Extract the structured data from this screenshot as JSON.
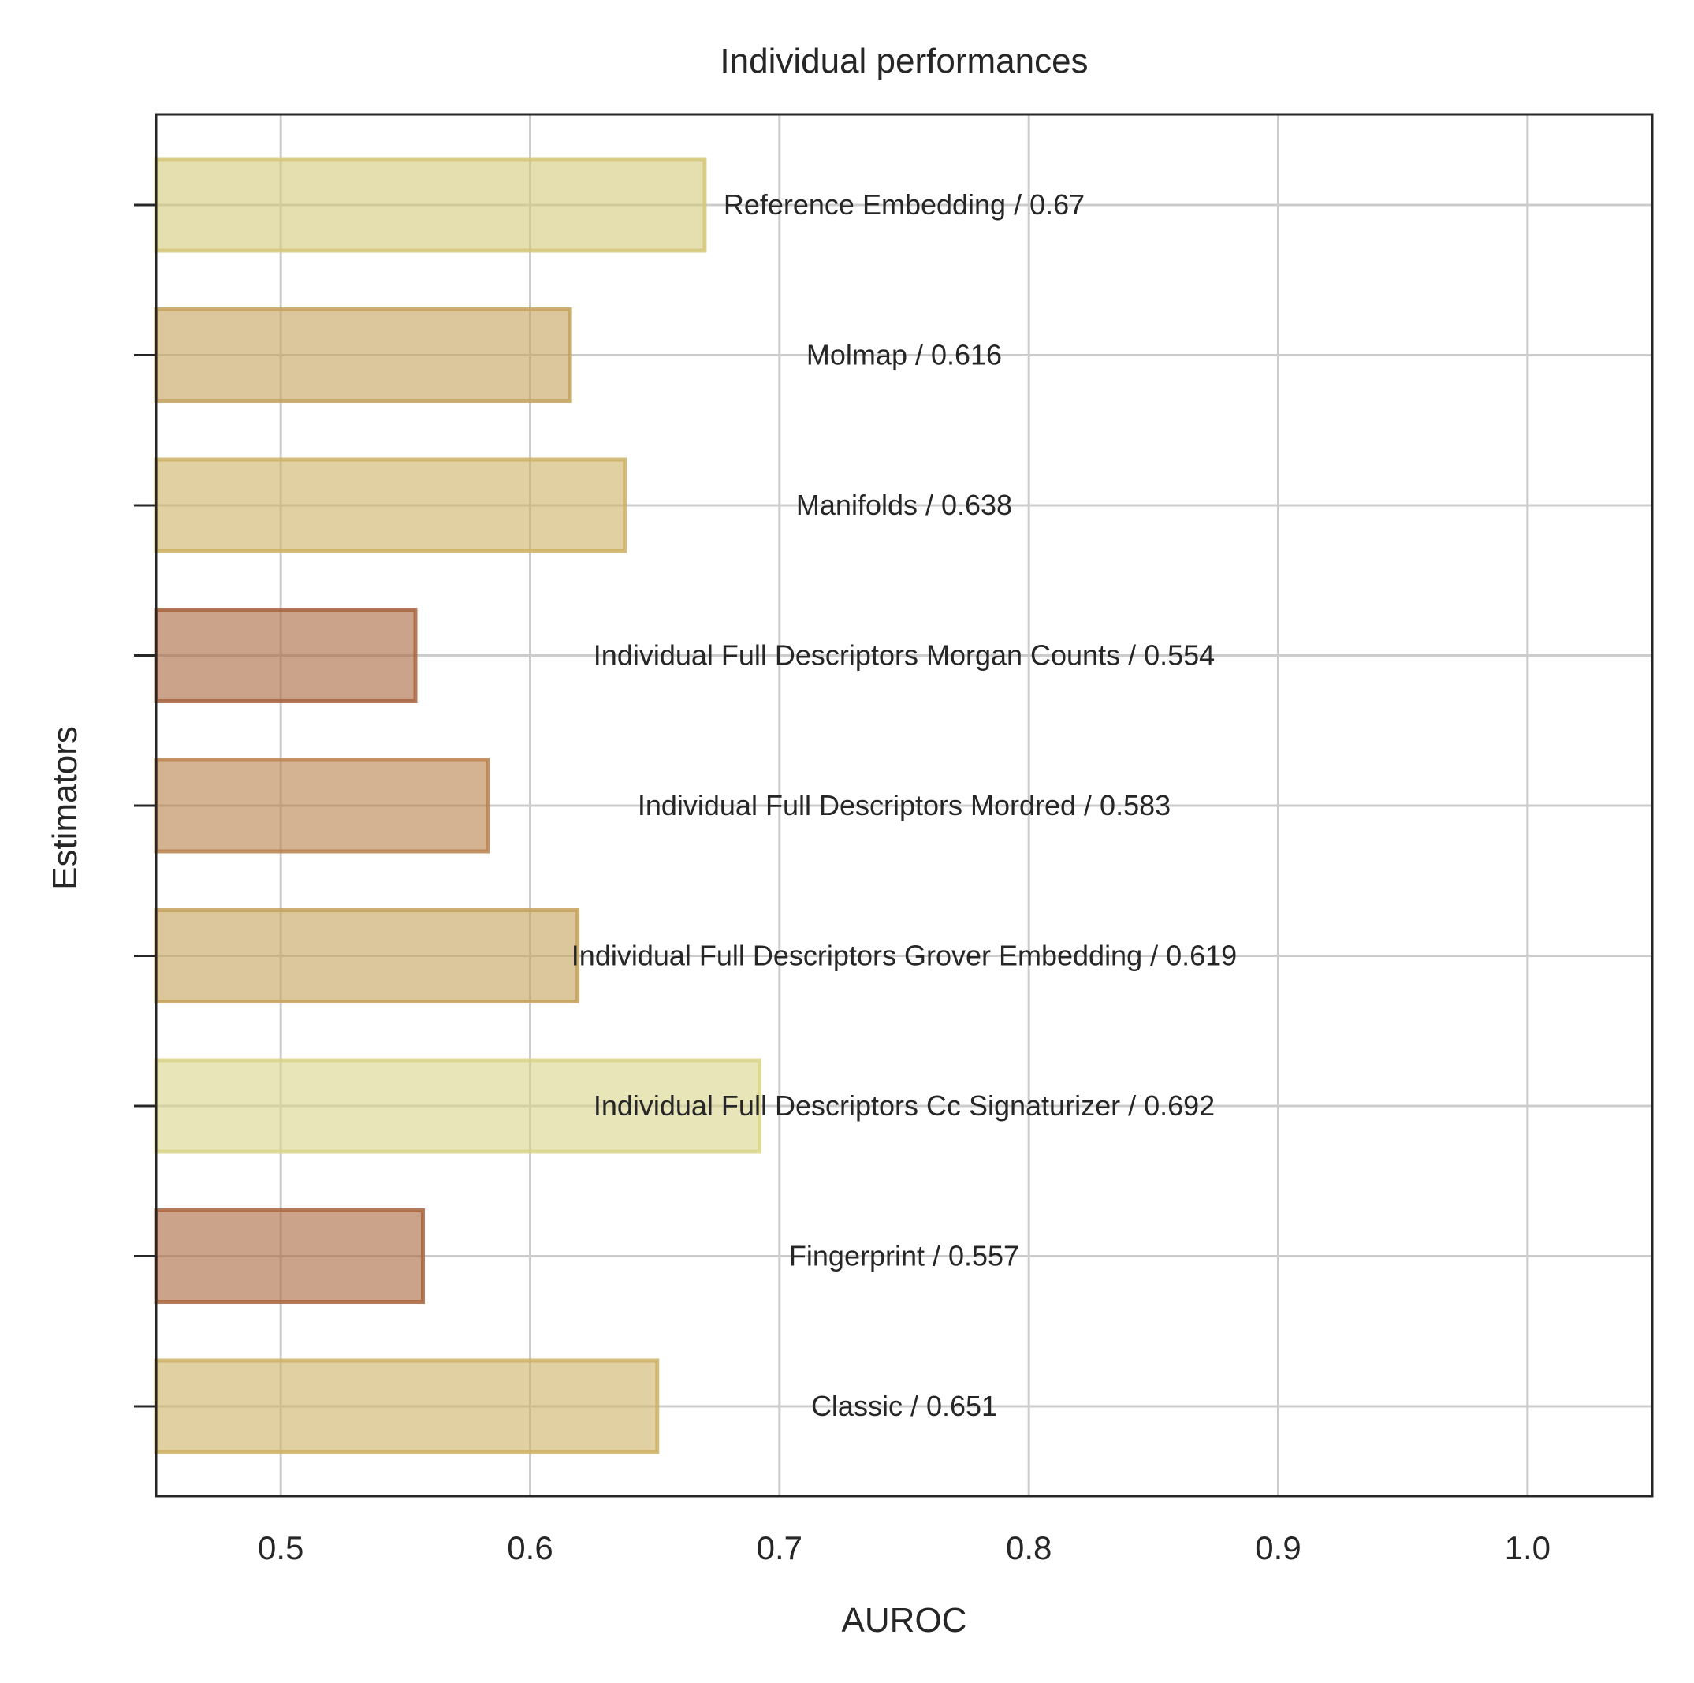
{
  "chart_data": {
    "type": "bar",
    "orientation": "horizontal",
    "title": "Individual performances",
    "xlabel": "AUROC",
    "ylabel": "Estimators",
    "xlim": [
      0.45,
      1.05
    ],
    "xticks": [
      0.5,
      0.6,
      0.7,
      0.8,
      0.9,
      1.0
    ],
    "xtick_labels": [
      "0.5",
      "0.6",
      "0.7",
      "0.8",
      "0.9",
      "1.0"
    ],
    "grid": true,
    "bar_alpha": 0.6,
    "bars": [
      {
        "value": 0.67,
        "label": "Reference Embedding / 0.67",
        "color": "#d4c878"
      },
      {
        "value": 0.616,
        "label": "Molmap / 0.616",
        "color": "#c4a05a"
      },
      {
        "value": 0.638,
        "label": "Manifolds / 0.638",
        "color": "#ccb064"
      },
      {
        "value": 0.554,
        "label": "Individual Full Descriptors Morgan Counts / 0.554",
        "color": "#a8643c"
      },
      {
        "value": 0.583,
        "label": "Individual Full Descriptors Mordred / 0.583",
        "color": "#b8804a"
      },
      {
        "value": 0.619,
        "label": "Individual Full Descriptors Grover Embedding / 0.619",
        "color": "#c4a05a"
      },
      {
        "value": 0.692,
        "label": "Individual Full Descriptors Cc Signaturizer / 0.692",
        "color": "#d8d488"
      },
      {
        "value": 0.557,
        "label": "Fingerprint / 0.557",
        "color": "#a8643c"
      },
      {
        "value": 0.651,
        "label": "Classic / 0.651",
        "color": "#ccb064"
      }
    ]
  }
}
